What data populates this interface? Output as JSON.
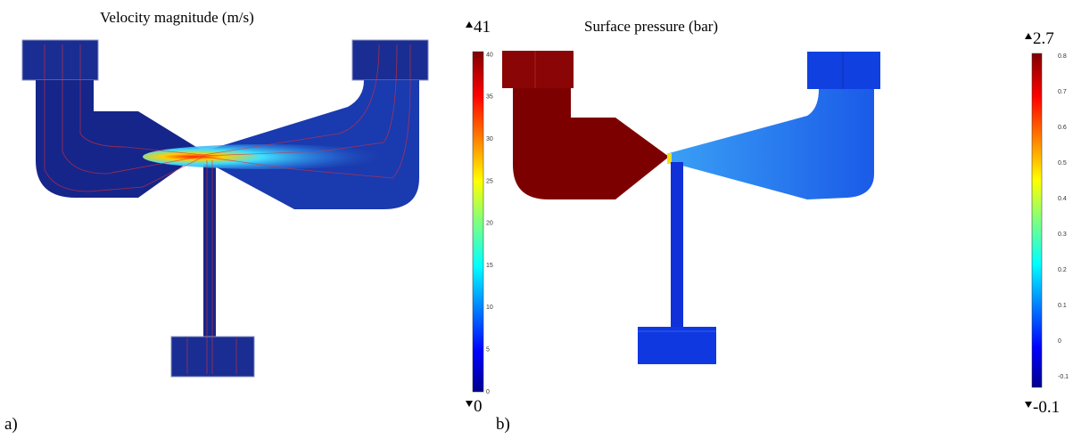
{
  "panels": [
    {
      "label": "a)",
      "title": "Velocity magnitude (m/s)",
      "colorbar": {
        "max": 41,
        "min": 0,
        "ticks": [
          0,
          5,
          10,
          15,
          20,
          25,
          30,
          35,
          40
        ]
      }
    },
    {
      "label": "b)",
      "title": "Surface pressure (bar)",
      "colorbar": {
        "max": 2.7,
        "min": -0.1,
        "ticks": [
          -0.1,
          0,
          0.1,
          0.2,
          0.3,
          0.4,
          0.5,
          0.6,
          0.7,
          0.8
        ]
      }
    }
  ]
}
